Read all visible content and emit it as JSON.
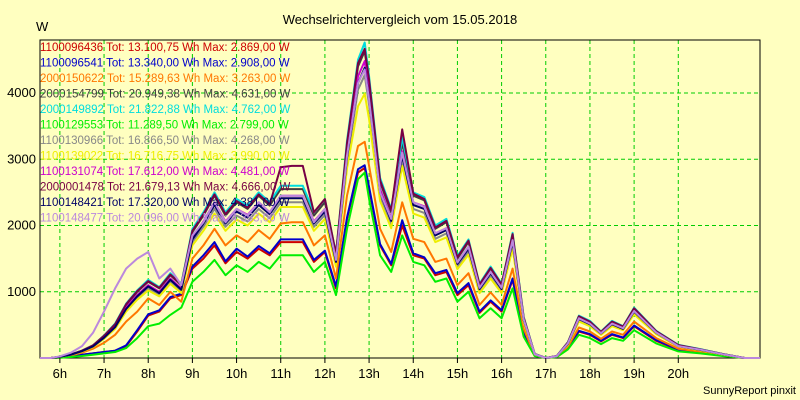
{
  "chart_data": {
    "type": "line",
    "title": "Wechselrichtervergleich vom 15.05.2018",
    "ylabel": "W",
    "xlabel": "",
    "xlim": [
      5.55,
      21.85
    ],
    "ylim": [
      0,
      4800
    ],
    "yticks": [
      1000,
      2000,
      3000,
      4000
    ],
    "xticks": [
      {
        "v": 6,
        "label": "6h"
      },
      {
        "v": 7,
        "label": "7h"
      },
      {
        "v": 8,
        "label": "8h"
      },
      {
        "v": 9,
        "label": "9h"
      },
      {
        "v": 10,
        "label": "10h"
      },
      {
        "v": 11,
        "label": "11h"
      },
      {
        "v": 12,
        "label": "12h"
      },
      {
        "v": 13,
        "label": "13h"
      },
      {
        "v": 14,
        "label": "14h"
      },
      {
        "v": 15,
        "label": "15h"
      },
      {
        "v": 16,
        "label": "16h"
      },
      {
        "v": 17,
        "label": "17h"
      },
      {
        "v": 18,
        "label": "18h"
      },
      {
        "v": 19,
        "label": "19h"
      },
      {
        "v": 20,
        "label": "20h"
      }
    ],
    "grid": true,
    "legend_position": "top-left",
    "x": [
      5.55,
      5.8,
      6.0,
      6.25,
      6.5,
      6.75,
      7.0,
      7.25,
      7.5,
      7.75,
      8.0,
      8.25,
      8.5,
      8.75,
      9.0,
      9.25,
      9.5,
      9.75,
      10.0,
      10.25,
      10.5,
      10.75,
      11.0,
      11.25,
      11.5,
      11.75,
      12.0,
      12.25,
      12.5,
      12.75,
      12.9,
      13.0,
      13.25,
      13.5,
      13.75,
      14.0,
      14.25,
      14.5,
      14.75,
      15.0,
      15.25,
      15.5,
      15.75,
      16.0,
      16.25,
      16.5,
      16.75,
      17.0,
      17.25,
      17.5,
      17.75,
      18.0,
      18.25,
      18.5,
      18.75,
      19.0,
      19.5,
      20.0,
      20.5,
      21.0,
      21.5,
      21.85
    ],
    "series": [
      {
        "name": "1100096436",
        "legend": "1100096436 Tot: 13.100,75 Wh Max: 2.869,00 W",
        "color": "#cc0000",
        "values": [
          0,
          0,
          8,
          25,
          50,
          70,
          90,
          110,
          180,
          400,
          640,
          700,
          900,
          950,
          1350,
          1500,
          1700,
          1430,
          1600,
          1500,
          1650,
          1550,
          1750,
          1750,
          1750,
          1450,
          1600,
          1050,
          2100,
          2800,
          2869,
          2550,
          1700,
          1400,
          2000,
          1550,
          1500,
          1250,
          1300,
          950,
          1100,
          680,
          850,
          700,
          1180,
          380,
          40,
          0,
          20,
          150,
          400,
          350,
          250,
          350,
          300,
          480,
          260,
          120,
          80,
          40,
          0,
          0
        ]
      },
      {
        "name": "1100096541",
        "legend": "1100096541 Tot: 13.340,00 Wh Max: 2.908,00 W",
        "color": "#0000cc",
        "values": [
          0,
          0,
          8,
          25,
          50,
          70,
          90,
          110,
          190,
          420,
          660,
          720,
          920,
          970,
          1380,
          1550,
          1750,
          1460,
          1650,
          1530,
          1690,
          1580,
          1790,
          1790,
          1790,
          1480,
          1620,
          1080,
          2120,
          2850,
          2908,
          2580,
          1720,
          1420,
          2080,
          1580,
          1520,
          1280,
          1330,
          980,
          1130,
          700,
          870,
          720,
          1200,
          390,
          40,
          0,
          20,
          160,
          410,
          360,
          260,
          360,
          310,
          490,
          270,
          130,
          85,
          40,
          0,
          0
        ]
      },
      {
        "name": "2000150622",
        "legend": "2000150622 Tot: 15.289,63 Wh Max: 3.263,00 W",
        "color": "#ff7700",
        "values": [
          0,
          0,
          15,
          40,
          80,
          140,
          230,
          350,
          550,
          700,
          900,
          800,
          1000,
          850,
          1500,
          1700,
          1950,
          1700,
          1850,
          1750,
          1930,
          1800,
          2030,
          2050,
          2050,
          1700,
          1850,
          1200,
          2450,
          3200,
          3263,
          2900,
          1950,
          1600,
          2350,
          1800,
          1750,
          1450,
          1500,
          1100,
          1280,
          800,
          990,
          800,
          1350,
          440,
          45,
          0,
          22,
          170,
          460,
          400,
          290,
          400,
          350,
          550,
          300,
          140,
          95,
          45,
          0,
          0
        ]
      },
      {
        "name": "2000154799",
        "legend": "2000154799 Tot: 20.949,38 Wh Max: 4.631,00 W",
        "color": "#404040",
        "values": [
          0,
          0,
          20,
          55,
          110,
          190,
          330,
          500,
          800,
          1000,
          1150,
          1050,
          1250,
          1100,
          1900,
          2150,
          2450,
          2150,
          2350,
          2250,
          2450,
          2300,
          2550,
          2550,
          2550,
          2150,
          2350,
          1550,
          3200,
          4400,
          4631,
          4150,
          2650,
          2200,
          3250,
          2450,
          2380,
          1950,
          2050,
          1500,
          1750,
          1100,
          1350,
          1100,
          1850,
          600,
          60,
          0,
          30,
          230,
          620,
          540,
          390,
          540,
          470,
          740,
          400,
          190,
          130,
          60,
          0,
          0
        ]
      },
      {
        "name": "2000149892",
        "legend": "2000149892 Tot: 21.822,88 Wh Max: 4.762,00 W",
        "color": "#00dddd",
        "values": [
          0,
          0,
          20,
          55,
          110,
          190,
          340,
          520,
          820,
          1020,
          1180,
          1070,
          1280,
          1120,
          1950,
          2200,
          2500,
          2200,
          2400,
          2300,
          2500,
          2350,
          2600,
          2600,
          2600,
          2200,
          2400,
          1580,
          3280,
          4500,
          4762,
          4250,
          2720,
          2250,
          3330,
          2500,
          2430,
          2000,
          2100,
          1540,
          1790,
          1120,
          1380,
          1120,
          1890,
          620,
          60,
          0,
          30,
          240,
          640,
          560,
          400,
          560,
          480,
          760,
          410,
          200,
          135,
          60,
          0,
          0
        ]
      },
      {
        "name": "1100129553",
        "legend": "1100129553 Tot: 11.289,50 Wh Max: 2.799,00 W",
        "color": "#00ee00",
        "values": [
          0,
          0,
          5,
          15,
          30,
          50,
          70,
          90,
          150,
          300,
          480,
          520,
          650,
          760,
          1150,
          1300,
          1480,
          1250,
          1400,
          1300,
          1450,
          1350,
          1550,
          1550,
          1550,
          1300,
          1450,
          950,
          1950,
          2700,
          2799,
          2400,
          1550,
          1300,
          1850,
          1450,
          1400,
          1150,
          1200,
          850,
          1000,
          600,
          750,
          600,
          1050,
          320,
          30,
          0,
          15,
          130,
          350,
          300,
          210,
          300,
          260,
          420,
          220,
          100,
          70,
          30,
          0,
          0
        ]
      },
      {
        "name": "1100130966",
        "legend": "1100130966 Tot: 16.866,50 Wh Max: 4.268,00 W",
        "color": "#888888",
        "values": [
          0,
          0,
          18,
          50,
          100,
          170,
          300,
          450,
          720,
          900,
          1050,
          960,
          1150,
          1000,
          1750,
          1980,
          2250,
          1980,
          2150,
          2060,
          2250,
          2110,
          2350,
          2350,
          2350,
          1980,
          2160,
          1420,
          2950,
          4050,
          4268,
          3820,
          2440,
          2020,
          2990,
          2250,
          2190,
          1800,
          1880,
          1380,
          1610,
          1010,
          1240,
          1010,
          1700,
          550,
          55,
          0,
          27,
          210,
          570,
          500,
          360,
          500,
          430,
          680,
          370,
          175,
          120,
          55,
          0,
          0
        ]
      },
      {
        "name": "1100139022",
        "legend": "1100139022 Tot: 16.716,75 Wh Max: 3.990,00 W",
        "color": "#eeee00",
        "values": [
          0,
          0,
          17,
          48,
          95,
          165,
          290,
          440,
          700,
          880,
          1020,
          930,
          1120,
          980,
          1700,
          1920,
          2180,
          1920,
          2090,
          2000,
          2180,
          2050,
          2280,
          2280,
          2280,
          1920,
          2100,
          1380,
          2860,
          3800,
          3990,
          3600,
          2370,
          1960,
          2900,
          2180,
          2120,
          1750,
          1820,
          1340,
          1560,
          980,
          1200,
          980,
          1650,
          530,
          53,
          0,
          26,
          200,
          550,
          480,
          350,
          480,
          420,
          660,
          360,
          170,
          115,
          53,
          0,
          0
        ]
      },
      {
        "name": "1100131074",
        "legend": "1100131074 Tot: 17.612,00 Wh Max: 4.481,00 W",
        "color": "#cc00cc",
        "values": [
          0,
          0,
          19,
          52,
          105,
          180,
          315,
          475,
          760,
          950,
          1100,
          1000,
          1200,
          1050,
          1820,
          2060,
          2350,
          2060,
          2250,
          2160,
          2350,
          2200,
          2450,
          2450,
          2450,
          2060,
          2250,
          1480,
          3080,
          4250,
          4481,
          4000,
          2550,
          2110,
          3120,
          2350,
          2290,
          1880,
          1960,
          1440,
          1680,
          1060,
          1300,
          1060,
          1780,
          580,
          58,
          0,
          28,
          220,
          600,
          520,
          375,
          520,
          450,
          710,
          385,
          180,
          125,
          58,
          0,
          0
        ]
      },
      {
        "name": "2000001478",
        "legend": "2000001478 Tot: 21.679,13 Wh Max: 4.666,00 W",
        "color": "#770044",
        "values": [
          0,
          0,
          20,
          55,
          110,
          190,
          335,
          510,
          810,
          1010,
          1160,
          1060,
          1260,
          1110,
          1920,
          2170,
          2470,
          2170,
          2370,
          2270,
          2470,
          2320,
          2880,
          2900,
          2900,
          2200,
          2400,
          1570,
          3240,
          4450,
          4666,
          4200,
          2680,
          2230,
          3450,
          2480,
          2400,
          1970,
          2070,
          1520,
          1770,
          1110,
          1360,
          1110,
          1870,
          610,
          60,
          0,
          30,
          235,
          630,
          550,
          395,
          550,
          475,
          750,
          405,
          195,
          132,
          60,
          0,
          0
        ]
      },
      {
        "name": "1100148421",
        "legend": "1100148421 Tot: 17.320,00 Wh Max: 4.381,00 W",
        "color": "#000066",
        "values": [
          0,
          0,
          18,
          50,
          102,
          175,
          305,
          465,
          740,
          930,
          1080,
          980,
          1180,
          1030,
          1790,
          2030,
          2310,
          2030,
          2210,
          2120,
          2310,
          2170,
          2410,
          2410,
          2410,
          2030,
          2210,
          1450,
          3020,
          4150,
          4381,
          3920,
          2500,
          2070,
          3060,
          2310,
          2250,
          1850,
          1930,
          1420,
          1650,
          1040,
          1280,
          1040,
          1750,
          570,
          57,
          0,
          28,
          215,
          590,
          510,
          370,
          510,
          440,
          700,
          380,
          178,
          122,
          57,
          0,
          0
        ]
      },
      {
        "name": "1100148477",
        "legend": "1100148477 Tot: 20.096,00 Wh Max: 4.353,00 W",
        "color": "#bb88dd",
        "values": [
          0,
          0,
          25,
          80,
          180,
          380,
          700,
          1050,
          1350,
          1500,
          1600,
          1200,
          1350,
          1100,
          1850,
          2050,
          2350,
          2050,
          2250,
          2150,
          2350,
          2200,
          2450,
          2450,
          2450,
          2050,
          2250,
          1480,
          3050,
          4150,
          4353,
          3900,
          2500,
          2100,
          3100,
          2350,
          2280,
          1880,
          1960,
          1440,
          1680,
          1060,
          1300,
          1060,
          1780,
          580,
          58,
          0,
          28,
          220,
          600,
          520,
          375,
          520,
          450,
          710,
          385,
          180,
          125,
          58,
          0,
          0
        ]
      }
    ],
    "annotation": "SunnyReport pinxit"
  }
}
